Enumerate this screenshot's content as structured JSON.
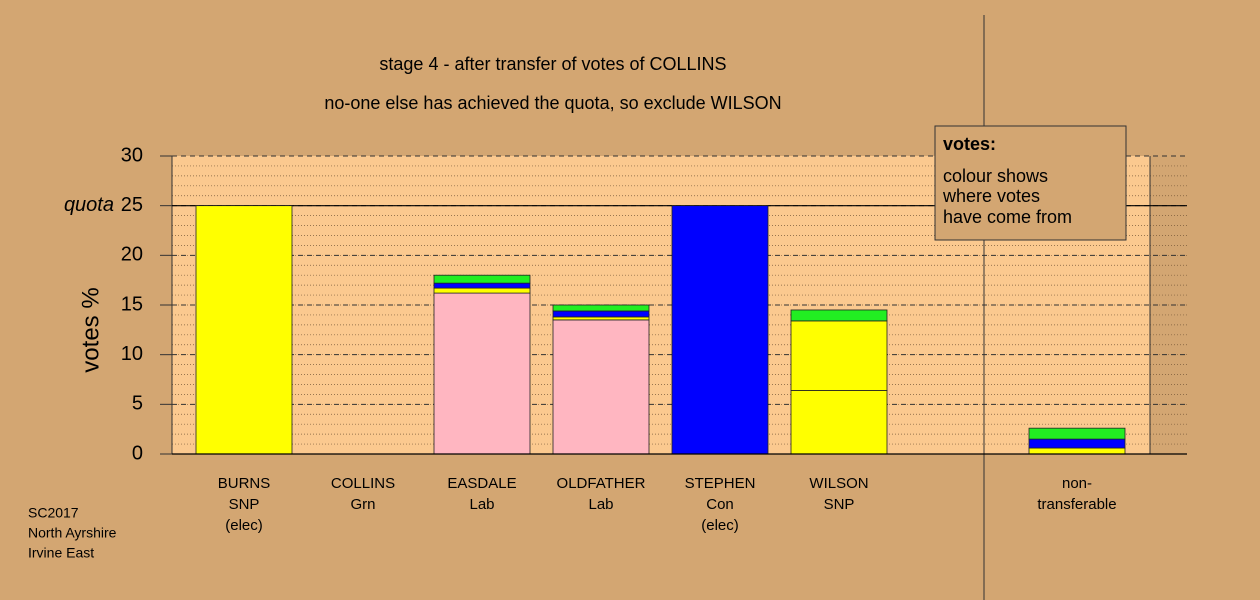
{
  "chart_data": {
    "type": "bar",
    "title": "stage 4 - after transfer of votes of COLLINS",
    "subtitle": "no-one else has achieved the quota, so exclude WILSON",
    "y_label": "votes %",
    "quota_label": "quota",
    "quota": 25,
    "categories": [
      "BURNS\nSNP\n(elec)",
      "COLLINS\nGrn",
      "EASDALE\nLab",
      "OLDFATHER\nLab",
      "STEPHEN\nCon\n(elec)",
      "WILSON\nSNP",
      null,
      "non-\ntransferable"
    ],
    "stacked": true,
    "series": [
      {
        "color": "#ffb6c1",
        "values": [
          0,
          0,
          16.2,
          13.5,
          0,
          0,
          null,
          0
        ]
      },
      {
        "color": "#ffff00",
        "values": [
          25,
          0,
          0.5,
          0.3,
          0,
          6.4,
          null,
          0.6
        ]
      },
      {
        "color": "#ffff00",
        "values": [
          0,
          0,
          0,
          0,
          0,
          7.0,
          null,
          0
        ]
      },
      {
        "color": "#0000ff",
        "values": [
          0,
          0,
          0.5,
          0.6,
          25,
          0,
          null,
          0.9
        ]
      },
      {
        "color": "#22ee22",
        "values": [
          0,
          0,
          0.8,
          0.6,
          0,
          1.1,
          null,
          1.1
        ]
      }
    ],
    "ylim": [
      0,
      30
    ],
    "yticks": [
      0,
      5,
      10,
      15,
      20,
      25,
      30
    ],
    "grid": true,
    "legend": {
      "title": "votes:",
      "lines": [
        "colour shows",
        "where votes",
        "have come from"
      ]
    },
    "footer": [
      "SC2017",
      "North Ayrshire",
      "Irvine East"
    ]
  }
}
